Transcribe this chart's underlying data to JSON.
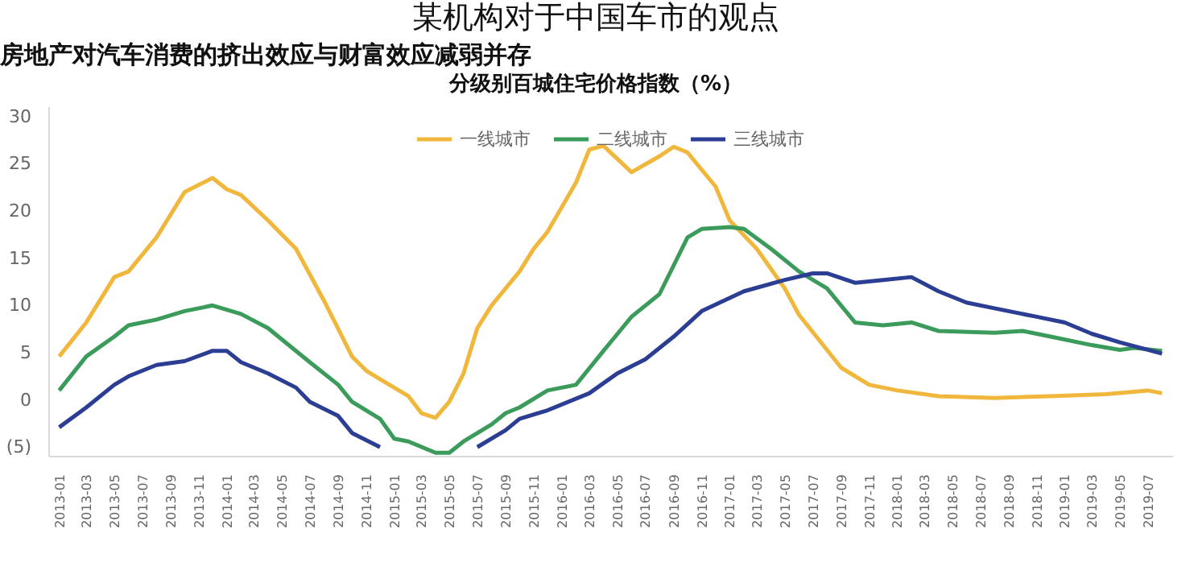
{
  "chart_data": {
    "type": "line",
    "title": "某机构对于中国车市的观点",
    "subtitle": "房地产对汽车消费的挤出效应与财富效应减弱并存",
    "annotations": [
      "分级别百城住宅价格指数（%）"
    ],
    "legend": "top",
    "grid": false,
    "line_style": "solid",
    "marker": "none",
    "xlim": [
      "2012-12-10",
      "2019-08-25"
    ],
    "ylim": [
      -6,
      31
    ],
    "yticks": [
      {
        "value": -5,
        "label": "(5)"
      },
      0,
      5,
      10,
      15,
      20,
      25,
      30
    ],
    "xticks": [
      "2013-01",
      "2013-03",
      "2013-05",
      "2013-07",
      "2013-09",
      "2013-11",
      "2014-01",
      "2014-03",
      "2014-05",
      "2014-07",
      "2014-09",
      "2014-11",
      "2015-01",
      "2015-03",
      "2015-05",
      "2015-07",
      "2015-09",
      "2015-11",
      "2016-01",
      "2016-03",
      "2016-05",
      "2016-07",
      "2016-09",
      "2016-11",
      "2017-01",
      "2017-03",
      "2017-05",
      "2017-07",
      "2017-09",
      "2017-11",
      "2018-01",
      "2018-03",
      "2018-05",
      "2018-07",
      "2018-09",
      "2018-11",
      "2019-01",
      "2019-03",
      "2019-05",
      "2019-07"
    ],
    "series": [
      {
        "name": "一线城市",
        "color": "#f0b73c",
        "x": [
          "2013-01",
          "2013-03",
          "2013-05",
          "2013-06",
          "2013-08",
          "2013-10",
          "2013-12",
          "2014-01",
          "2014-02",
          "2014-04",
          "2014-06",
          "2014-08",
          "2014-10",
          "2014-11",
          "2014-12",
          "2015-02",
          "2015-03",
          "2015-04",
          "2015-05",
          "2015-06",
          "2015-07",
          "2015-08",
          "2015-10",
          "2015-11",
          "2015-12",
          "2016-02",
          "2016-03",
          "2016-04",
          "2016-06",
          "2016-08",
          "2016-09",
          "2016-10",
          "2016-12",
          "2017-01",
          "2017-03",
          "2017-05",
          "2017-06",
          "2017-09",
          "2017-11",
          "2018-01",
          "2018-04",
          "2018-08",
          "2018-12",
          "2019-04",
          "2019-07",
          "2019-08"
        ],
        "values": [
          4.6,
          8.2,
          13,
          13.6,
          17.2,
          22,
          23.5,
          22.3,
          21.7,
          19,
          16,
          10.5,
          4.6,
          3.1,
          2.2,
          0.4,
          -1.4,
          -1.9,
          -0.2,
          2.8,
          7.6,
          10,
          13.6,
          16,
          17.8,
          23,
          26.5,
          26.9,
          24.1,
          25.8,
          26.8,
          26.2,
          22.6,
          19,
          16,
          11.8,
          9,
          3.4,
          1.6,
          1,
          0.4,
          0.2,
          0.4,
          0.6,
          1,
          0.7
        ]
      },
      {
        "name": "二线城市",
        "color": "#3a9b5a",
        "x": [
          "2013-01",
          "2013-03",
          "2013-05",
          "2013-06",
          "2013-08",
          "2013-10",
          "2013-12",
          "2014-02",
          "2014-04",
          "2014-05",
          "2014-07",
          "2014-09",
          "2014-10",
          "2014-12",
          "2015-01",
          "2015-02",
          "2015-04",
          "2015-05",
          "2015-06",
          "2015-08",
          "2015-09",
          "2015-10",
          "2015-12",
          "2016-02",
          "2016-04",
          "2016-06",
          "2016-08",
          "2016-10",
          "2016-11",
          "2017-01",
          "2017-02",
          "2017-04",
          "2017-06",
          "2017-08",
          "2017-10",
          "2017-12",
          "2018-02",
          "2018-04",
          "2018-08",
          "2018-10",
          "2018-12",
          "2019-03",
          "2019-05",
          "2019-06",
          "2019-08"
        ],
        "values": [
          1,
          4.6,
          6.7,
          7.9,
          8.5,
          9.4,
          10,
          9.1,
          7.6,
          6.4,
          4,
          1.6,
          -0.2,
          -2,
          -4.1,
          -4.4,
          -5.6,
          -5.6,
          -4.4,
          -2.6,
          -1.4,
          -0.8,
          1,
          1.6,
          5.2,
          8.8,
          11.2,
          17.2,
          18.1,
          18.3,
          18.1,
          16,
          13.6,
          11.8,
          8.2,
          7.9,
          8.2,
          7.3,
          7.1,
          7.3,
          6.7,
          5.8,
          5.3,
          5.5,
          5.2
        ]
      },
      {
        "name": "三线城市",
        "color": "#2c3e94",
        "x": [
          "2013-01",
          "2013-03",
          "2013-05",
          "2013-06",
          "2013-08",
          "2013-10",
          "2013-12",
          "2014-01",
          "2014-02",
          "2014-04",
          "2014-06",
          "2014-07",
          "2014-09",
          "2014-10",
          "2014-12",
          "2015-01",
          "2015-07",
          "2015-09",
          "2015-10",
          "2015-12",
          "2016-03",
          "2016-05",
          "2016-07",
          "2016-09",
          "2016-11",
          "2016-12",
          "2017-02",
          "2017-05",
          "2017-07",
          "2017-08",
          "2017-10",
          "2017-12",
          "2018-02",
          "2018-04",
          "2018-06",
          "2018-08",
          "2018-11",
          "2019-01",
          "2019-03",
          "2019-05",
          "2019-08"
        ],
        "values": [
          -2.9,
          -0.8,
          1.6,
          2.5,
          3.7,
          4.1,
          5.2,
          5.2,
          4,
          2.8,
          1.3,
          -0.2,
          -1.7,
          -3.5,
          -5,
          null,
          -5,
          -3.2,
          -2,
          -1.1,
          0.7,
          2.8,
          4.3,
          6.7,
          9.4,
          10.1,
          11.5,
          12.7,
          13.4,
          13.4,
          12.4,
          12.7,
          13,
          11.5,
          10.3,
          9.7,
          8.8,
          8.2,
          7,
          6.1,
          4.9
        ]
      }
    ]
  }
}
